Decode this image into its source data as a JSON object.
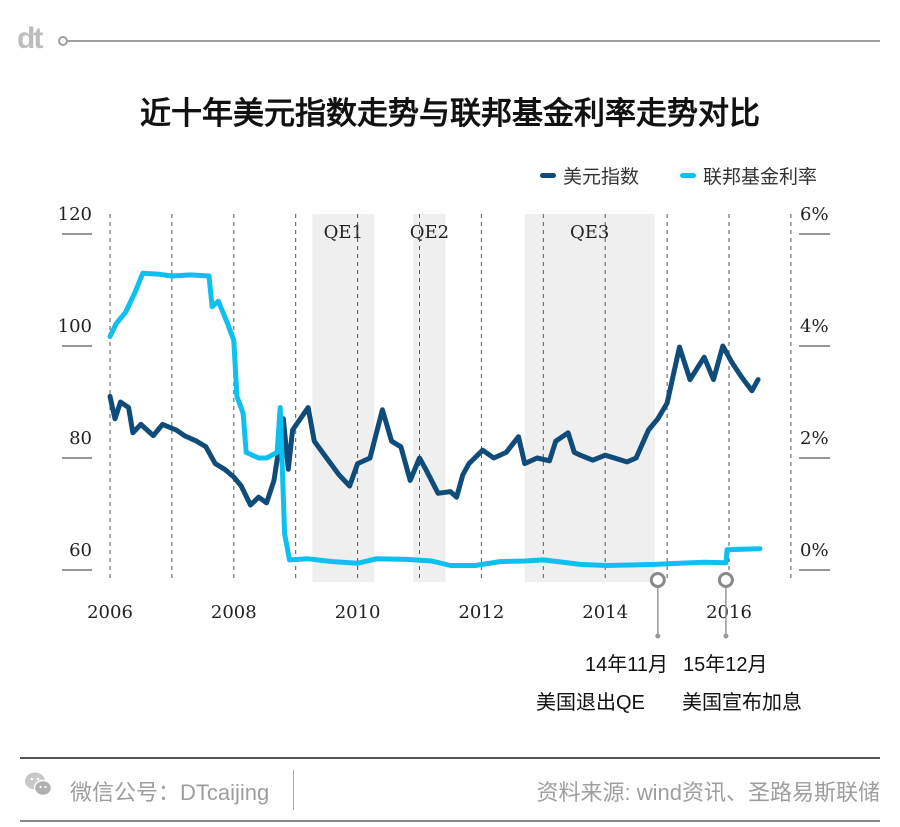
{
  "logo": "dt",
  "title": "近十年美元指数走势与联邦基金利率走势对比",
  "chart_data": {
    "type": "line",
    "title": "近十年美元指数走势与联邦基金利率走势对比",
    "legend_position": "top-right",
    "grid": "vertical dashed lines at each year",
    "x_range": [
      2006,
      2017.1
    ],
    "x_ticks": [
      "2006",
      "2008",
      "2010",
      "2012",
      "2014",
      "2016"
    ],
    "x_tick_values": [
      2006,
      2008,
      2010,
      2012,
      2014,
      2016
    ],
    "y_left": {
      "range": [
        60,
        120
      ],
      "ticks": [
        "120",
        "100",
        "80",
        "60"
      ],
      "tick_values": [
        120,
        100,
        80,
        60
      ]
    },
    "y_right": {
      "range": [
        0,
        6
      ],
      "ticks": [
        "6%",
        "4%",
        "2%",
        "0%"
      ],
      "tick_values": [
        6,
        4,
        2,
        0
      ]
    },
    "series": [
      {
        "name": "美元指数",
        "axis": "left",
        "color": "#0f4c7a",
        "points": [
          [
            2006.0,
            91
          ],
          [
            2006.08,
            87
          ],
          [
            2006.17,
            90
          ],
          [
            2006.3,
            89
          ],
          [
            2006.37,
            84.5
          ],
          [
            2006.5,
            86
          ],
          [
            2006.7,
            84
          ],
          [
            2006.85,
            86
          ],
          [
            2007.07,
            85
          ],
          [
            2007.2,
            84
          ],
          [
            2007.4,
            83
          ],
          [
            2007.55,
            82
          ],
          [
            2007.7,
            79
          ],
          [
            2007.85,
            78
          ],
          [
            2008.0,
            76.6
          ],
          [
            2008.12,
            75
          ],
          [
            2008.27,
            71.6
          ],
          [
            2008.4,
            73
          ],
          [
            2008.53,
            72
          ],
          [
            2008.65,
            76
          ],
          [
            2008.8,
            87
          ],
          [
            2008.88,
            78
          ],
          [
            2008.95,
            85
          ],
          [
            2009.2,
            89
          ],
          [
            2009.3,
            83
          ],
          [
            2009.5,
            80
          ],
          [
            2009.7,
            77
          ],
          [
            2009.87,
            75
          ],
          [
            2010.0,
            79
          ],
          [
            2010.2,
            80
          ],
          [
            2010.4,
            88.6
          ],
          [
            2010.55,
            83
          ],
          [
            2010.7,
            82
          ],
          [
            2010.85,
            76
          ],
          [
            2011.0,
            80
          ],
          [
            2011.1,
            78
          ],
          [
            2011.3,
            73.7
          ],
          [
            2011.5,
            74
          ],
          [
            2011.6,
            73
          ],
          [
            2011.7,
            77
          ],
          [
            2011.8,
            79
          ],
          [
            2012.02,
            81.4
          ],
          [
            2012.2,
            80
          ],
          [
            2012.4,
            81
          ],
          [
            2012.6,
            83.8
          ],
          [
            2012.7,
            79
          ],
          [
            2012.9,
            80
          ],
          [
            2013.1,
            79.5
          ],
          [
            2013.2,
            83
          ],
          [
            2013.4,
            84.5
          ],
          [
            2013.5,
            81
          ],
          [
            2013.6,
            80.5
          ],
          [
            2013.8,
            79.6
          ],
          [
            2014.0,
            80.5
          ],
          [
            2014.35,
            79.3
          ],
          [
            2014.5,
            80
          ],
          [
            2014.7,
            85
          ],
          [
            2014.85,
            87
          ],
          [
            2015.0,
            89.8
          ],
          [
            2015.2,
            99.8
          ],
          [
            2015.37,
            94
          ],
          [
            2015.6,
            98
          ],
          [
            2015.75,
            94
          ],
          [
            2015.9,
            100
          ],
          [
            2016.05,
            97
          ],
          [
            2016.2,
            94.5
          ],
          [
            2016.37,
            92
          ],
          [
            2016.47,
            94
          ]
        ]
      },
      {
        "name": "联邦基金利率",
        "axis": "right",
        "color": "#0dc0f0",
        "points": [
          [
            2006.0,
            4.17
          ],
          [
            2006.1,
            4.4
          ],
          [
            2006.25,
            4.6
          ],
          [
            2006.4,
            4.95
          ],
          [
            2006.53,
            5.3
          ],
          [
            2006.8,
            5.28
          ],
          [
            2007.0,
            5.25
          ],
          [
            2007.3,
            5.27
          ],
          [
            2007.6,
            5.25
          ],
          [
            2007.65,
            4.7
          ],
          [
            2007.75,
            4.8
          ],
          [
            2007.9,
            4.4
          ],
          [
            2008.0,
            4.1
          ],
          [
            2008.05,
            3.1
          ],
          [
            2008.15,
            2.8
          ],
          [
            2008.2,
            2.1
          ],
          [
            2008.4,
            2.0
          ],
          [
            2008.53,
            2.0
          ],
          [
            2008.7,
            2.1
          ],
          [
            2008.75,
            2.9
          ],
          [
            2008.82,
            0.65
          ],
          [
            2008.9,
            0.18
          ],
          [
            2009.2,
            0.2
          ],
          [
            2009.6,
            0.15
          ],
          [
            2010.0,
            0.12
          ],
          [
            2010.3,
            0.2
          ],
          [
            2010.8,
            0.19
          ],
          [
            2011.2,
            0.16
          ],
          [
            2011.5,
            0.08
          ],
          [
            2011.9,
            0.08
          ],
          [
            2012.3,
            0.15
          ],
          [
            2012.7,
            0.16
          ],
          [
            2013.0,
            0.18
          ],
          [
            2013.6,
            0.1
          ],
          [
            2014.0,
            0.08
          ],
          [
            2014.4,
            0.09
          ],
          [
            2014.8,
            0.1
          ],
          [
            2015.2,
            0.12
          ],
          [
            2015.6,
            0.14
          ],
          [
            2015.95,
            0.13
          ],
          [
            2015.97,
            0.36
          ],
          [
            2016.2,
            0.37
          ],
          [
            2016.5,
            0.38
          ]
        ]
      }
    ],
    "shaded_periods": [
      {
        "label": "QE1",
        "start": 2009.27,
        "end": 2010.27
      },
      {
        "label": "QE2",
        "start": 2010.9,
        "end": 2011.42
      },
      {
        "label": "QE3",
        "start": 2012.7,
        "end": 2014.8
      }
    ],
    "annotations": [
      {
        "x": 2014.85,
        "date": "14年11月",
        "text": "美国退出QE"
      },
      {
        "x": 2015.95,
        "date": "15年12月",
        "text": "美国宣布加息"
      }
    ]
  },
  "legend": [
    "美元指数",
    "联邦基金利率"
  ],
  "footer": {
    "wechat": "微信公号：DTcaijing",
    "source": "资料来源: wind资讯、圣路易斯联储"
  }
}
